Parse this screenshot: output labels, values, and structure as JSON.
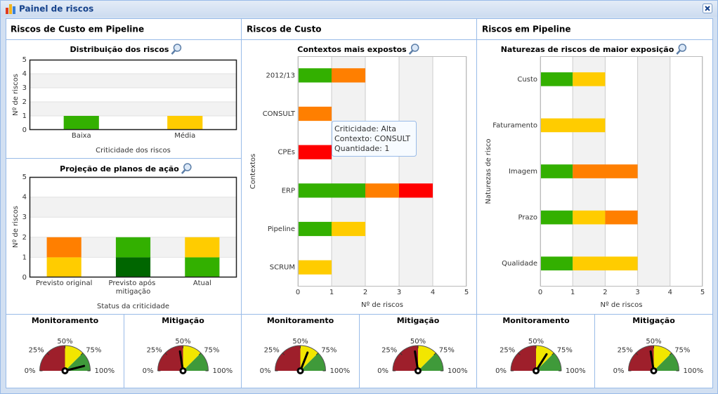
{
  "window": {
    "title": "Painel de riscos"
  },
  "panels": [
    {
      "title": "Riscos de Custo em Pipeline"
    },
    {
      "title": "Riscos de Custo"
    },
    {
      "title": "Riscos em Pipeline"
    }
  ],
  "chart_data": [
    {
      "type": "bar",
      "title": "Distribuição dos riscos",
      "categories": [
        "Baixa",
        "Média"
      ],
      "values": [
        1,
        1
      ],
      "colors": [
        "#33b000",
        "#ffcc00"
      ],
      "ylim": [
        0,
        5
      ],
      "yticks": [
        0,
        1,
        2,
        3,
        4,
        5
      ],
      "grid": "bands",
      "ylabel": "Nº de riscos",
      "xlabel": "Criticidade dos riscos"
    },
    {
      "type": "stacked_bar",
      "title": "Projeção de planos de ação",
      "categories": [
        "Previsto original",
        "Previsto após mitigação",
        "Atual"
      ],
      "series": [
        {
          "color": "#006600",
          "values": [
            0,
            1,
            0
          ]
        },
        {
          "color": "#33b000",
          "values": [
            0,
            1,
            1
          ]
        },
        {
          "color": "#ffcc00",
          "values": [
            1,
            0,
            1
          ]
        },
        {
          "color": "#ff7f00",
          "values": [
            1,
            0,
            0
          ]
        }
      ],
      "ylim": [
        0,
        5
      ],
      "yticks": [
        0,
        1,
        2,
        3,
        4,
        5
      ],
      "grid": "bands",
      "ylabel": "Nº de riscos",
      "xlabel": "Status da criticidade"
    },
    {
      "type": "stacked_barh",
      "title": "Contextos mais expostos",
      "categories": [
        "2012/13",
        "CONSULT",
        "CPEs",
        "ERP",
        "Pipeline",
        "SCRUM"
      ],
      "series": [
        {
          "color": "#33b000",
          "values": [
            1,
            0,
            0,
            2,
            1,
            0
          ]
        },
        {
          "color": "#ffcc00",
          "values": [
            0,
            0,
            0,
            0,
            1,
            1
          ]
        },
        {
          "color": "#ff7f00",
          "values": [
            1,
            1,
            0,
            1,
            0,
            0
          ]
        },
        {
          "color": "#ff0000",
          "values": [
            0,
            0,
            1,
            1,
            0,
            0
          ]
        }
      ],
      "xlim": [
        0,
        5
      ],
      "xticks": [
        0,
        1,
        2,
        3,
        4,
        5
      ],
      "grid": "bands",
      "xlabel": "Nº de riscos",
      "ylabel": "Contextos",
      "tooltip": [
        "Criticidade: Alta",
        "Contexto: CONSULT",
        "Quantidade: 1"
      ]
    },
    {
      "type": "stacked_barh",
      "title": "Naturezas de riscos de maior exposição",
      "categories": [
        "Custo",
        "Faturamento",
        "Imagem",
        "Prazo",
        "Qualidade"
      ],
      "series": [
        {
          "color": "#33b000",
          "values": [
            1,
            0,
            1,
            1,
            1
          ]
        },
        {
          "color": "#ffcc00",
          "values": [
            1,
            2,
            0,
            1,
            2
          ]
        },
        {
          "color": "#ff7f00",
          "values": [
            0,
            0,
            2,
            1,
            0
          ]
        }
      ],
      "xlim": [
        0,
        5
      ],
      "xticks": [
        0,
        1,
        2,
        3,
        4,
        5
      ],
      "grid": "bands",
      "xlabel": "Nº de riscos",
      "ylabel": "Naturezas de risco"
    }
  ],
  "gauges": [
    {
      "title": "Monitoramento",
      "value": 92
    },
    {
      "title": "Mitigação",
      "value": 45
    },
    {
      "title": "Monitoramento",
      "value": 62
    },
    {
      "title": "Mitigação",
      "value": 45
    },
    {
      "title": "Monitoramento",
      "value": 68
    },
    {
      "title": "Mitigação",
      "value": 45
    }
  ],
  "gauge_ticks": [
    {
      "value": 0,
      "label": "0%"
    },
    {
      "value": 25,
      "label": "25%"
    },
    {
      "value": 50,
      "label": "50%"
    },
    {
      "value": 75,
      "label": "75%"
    },
    {
      "value": 100,
      "label": "100%"
    }
  ],
  "gauge_bands": [
    {
      "from": 0,
      "to": 50,
      "color": "#9e1f2b"
    },
    {
      "from": 50,
      "to": 75,
      "color": "#f2e600"
    },
    {
      "from": 75,
      "to": 100,
      "color": "#3f9a3a"
    }
  ]
}
